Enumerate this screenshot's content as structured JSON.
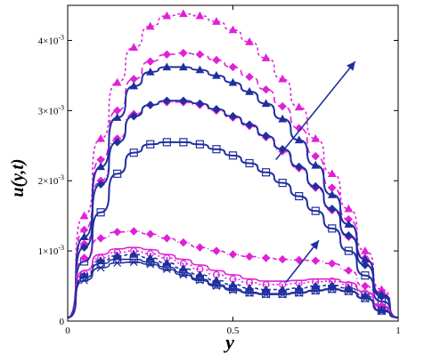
{
  "chart_data": {
    "type": "line",
    "xlabel": "y",
    "ylabel": "u(y,t)",
    "xlim": [
      0,
      1
    ],
    "ylim": [
      0,
      4.5
    ],
    "ylabel_scale_note": "values in units of 10^-3",
    "x_ticks": [
      {
        "value": 0,
        "label": "0"
      },
      {
        "value": 0.5,
        "label": "0.5"
      },
      {
        "value": 1,
        "label": "1"
      }
    ],
    "y_ticks": [
      {
        "value": 0,
        "label": "0"
      },
      {
        "value": 1,
        "label": "1×10",
        "exp": "-3"
      },
      {
        "value": 2,
        "label": "2×10",
        "exp": "-3"
      },
      {
        "value": 3,
        "label": "3×10",
        "exp": "-3"
      },
      {
        "value": 4,
        "label": "4×10",
        "exp": "-3"
      }
    ],
    "x": [
      0,
      0.05,
      0.1,
      0.15,
      0.2,
      0.25,
      0.3,
      0.35,
      0.4,
      0.45,
      0.5,
      0.55,
      0.6,
      0.65,
      0.7,
      0.75,
      0.8,
      0.85,
      0.9,
      0.95,
      1.0
    ],
    "colors": {
      "blue": "#1f2f9e",
      "magenta": "#e020d8"
    },
    "series": [
      {
        "group": "upper",
        "color": "#e020d8",
        "dash": "3,3",
        "marker": "triangle",
        "values": [
          0.05,
          1.5,
          2.6,
          3.4,
          3.9,
          4.2,
          4.35,
          4.38,
          4.35,
          4.27,
          4.15,
          3.98,
          3.75,
          3.45,
          3.05,
          2.6,
          2.1,
          1.6,
          1.0,
          0.45,
          0.05
        ]
      },
      {
        "group": "upper",
        "color": "#e020d8",
        "dash": "7,4",
        "marker": "diamond",
        "values": [
          0.05,
          1.3,
          2.3,
          3.0,
          3.45,
          3.7,
          3.8,
          3.82,
          3.8,
          3.72,
          3.62,
          3.48,
          3.3,
          3.06,
          2.75,
          2.35,
          1.9,
          1.45,
          0.9,
          0.4,
          0.05
        ]
      },
      {
        "group": "upper",
        "color": "#1f2f9e",
        "dash": "",
        "marker": "triangle",
        "values": [
          0.05,
          1.2,
          2.2,
          2.9,
          3.35,
          3.55,
          3.62,
          3.62,
          3.58,
          3.5,
          3.4,
          3.27,
          3.1,
          2.88,
          2.58,
          2.22,
          1.8,
          1.38,
          0.88,
          0.38,
          0.05
        ]
      },
      {
        "group": "upper",
        "color": "#e020d8",
        "dash": "5,3,1,3",
        "marker": "diamond",
        "values": [
          0.05,
          1.1,
          2.0,
          2.6,
          2.95,
          3.08,
          3.12,
          3.12,
          3.08,
          3.0,
          2.9,
          2.78,
          2.62,
          2.42,
          2.18,
          1.9,
          1.58,
          1.2,
          0.8,
          0.35,
          0.05
        ]
      },
      {
        "group": "upper",
        "color": "#1f2f9e",
        "dash": "",
        "marker": "diamond-filled",
        "values": [
          0.05,
          1.05,
          1.95,
          2.55,
          2.92,
          3.08,
          3.14,
          3.14,
          3.1,
          3.02,
          2.92,
          2.8,
          2.64,
          2.45,
          2.2,
          1.92,
          1.6,
          1.22,
          0.8,
          0.35,
          0.05
        ]
      },
      {
        "group": "upper",
        "color": "#1f2f9e",
        "dash": "",
        "marker": "square-open",
        "values": [
          0.05,
          0.85,
          1.55,
          2.1,
          2.4,
          2.52,
          2.55,
          2.55,
          2.52,
          2.45,
          2.36,
          2.25,
          2.12,
          1.97,
          1.78,
          1.57,
          1.32,
          1.0,
          0.65,
          0.28,
          0.05
        ]
      },
      {
        "group": "lower",
        "color": "#e020d8",
        "dash": "5,3,1,3",
        "marker": "diamond",
        "values": [
          0.05,
          0.9,
          1.18,
          1.27,
          1.28,
          1.24,
          1.18,
          1.12,
          1.05,
          1.0,
          0.95,
          0.92,
          0.9,
          0.88,
          0.87,
          0.86,
          0.82,
          0.72,
          0.5,
          0.22,
          0.05
        ]
      },
      {
        "group": "lower",
        "color": "#e020d8",
        "dash": "",
        "marker": "none",
        "values": [
          0.05,
          0.72,
          0.95,
          1.03,
          1.05,
          1.02,
          0.95,
          0.88,
          0.8,
          0.72,
          0.66,
          0.6,
          0.57,
          0.57,
          0.58,
          0.6,
          0.6,
          0.55,
          0.42,
          0.2,
          0.05
        ]
      },
      {
        "group": "lower",
        "color": "#e020d8",
        "dash": "2,3",
        "marker": "circle",
        "values": [
          0.05,
          0.68,
          0.9,
          0.98,
          1.0,
          0.96,
          0.9,
          0.82,
          0.74,
          0.66,
          0.6,
          0.55,
          0.52,
          0.52,
          0.54,
          0.56,
          0.57,
          0.52,
          0.4,
          0.18,
          0.05
        ]
      },
      {
        "group": "lower",
        "color": "#1f2f9e",
        "dash": "4,3",
        "marker": "triangle",
        "values": [
          0.05,
          0.65,
          0.86,
          0.93,
          0.95,
          0.9,
          0.83,
          0.75,
          0.66,
          0.58,
          0.52,
          0.47,
          0.45,
          0.45,
          0.47,
          0.5,
          0.51,
          0.47,
          0.36,
          0.16,
          0.05
        ]
      },
      {
        "group": "lower",
        "color": "#1f2f9e",
        "dash": "",
        "marker": "square-open",
        "values": [
          0.05,
          0.62,
          0.82,
          0.88,
          0.88,
          0.84,
          0.77,
          0.69,
          0.6,
          0.52,
          0.46,
          0.41,
          0.39,
          0.39,
          0.41,
          0.44,
          0.46,
          0.43,
          0.33,
          0.15,
          0.05
        ]
      },
      {
        "group": "lower",
        "color": "#1f2f9e",
        "dash": "",
        "marker": "x",
        "values": [
          0.05,
          0.58,
          0.76,
          0.83,
          0.84,
          0.81,
          0.74,
          0.66,
          0.58,
          0.5,
          0.44,
          0.4,
          0.38,
          0.38,
          0.4,
          0.43,
          0.45,
          0.42,
          0.32,
          0.14,
          0.05
        ]
      }
    ],
    "annotations": [
      {
        "type": "arrow",
        "from": [
          0.63,
          2.3
        ],
        "to": [
          0.87,
          3.7
        ]
      },
      {
        "type": "arrow",
        "from": [
          0.66,
          0.55
        ],
        "to": [
          0.76,
          1.15
        ]
      }
    ]
  }
}
